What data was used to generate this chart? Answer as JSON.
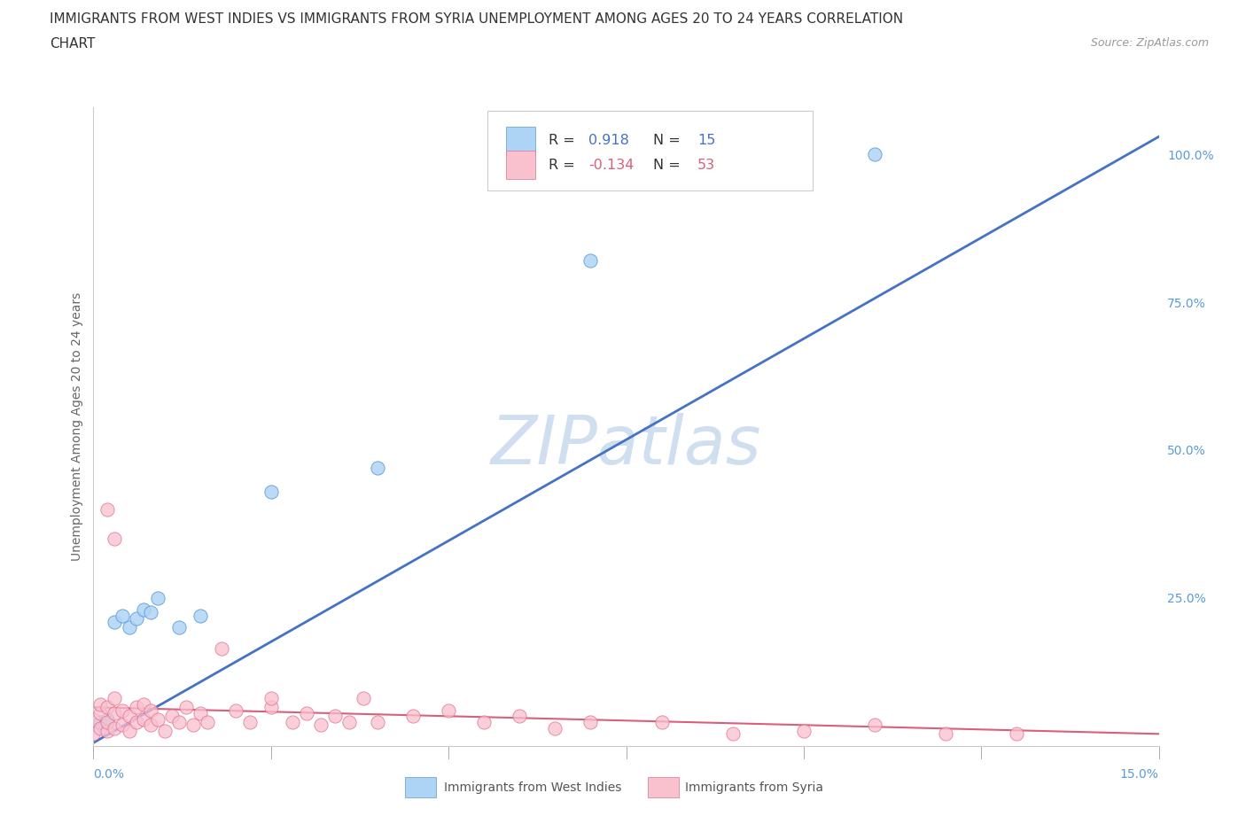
{
  "title_line1": "IMMIGRANTS FROM WEST INDIES VS IMMIGRANTS FROM SYRIA UNEMPLOYMENT AMONG AGES 20 TO 24 YEARS CORRELATION",
  "title_line2": "CHART",
  "source": "Source: ZipAtlas.com",
  "xlabel_bottom_left": "0.0%",
  "xlabel_bottom_right": "15.0%",
  "ylabel": "Unemployment Among Ages 20 to 24 years",
  "right_yticks": [
    "100.0%",
    "75.0%",
    "50.0%",
    "25.0%"
  ],
  "right_ytick_vals": [
    1.0,
    0.75,
    0.5,
    0.25
  ],
  "xlim": [
    0.0,
    0.15
  ],
  "ylim": [
    0.0,
    1.08
  ],
  "blue_R": 0.918,
  "blue_N": 15,
  "pink_R": -0.134,
  "pink_N": 53,
  "blue_color": "#aed4f5",
  "blue_edge_color": "#5b9bd5",
  "blue_line_color": "#4472c4",
  "pink_color": "#f9c0ce",
  "pink_edge_color": "#e07090",
  "pink_line_color": "#d95f7a",
  "right_axis_color": "#5b9bd5",
  "watermark": "ZIPatlas",
  "watermark_color": "#d0dff0",
  "legend_label_blue": "Immigrants from West Indies",
  "legend_label_pink": "Immigrants from Syria",
  "blue_scatter_x": [
    0.001,
    0.002,
    0.003,
    0.004,
    0.005,
    0.006,
    0.007,
    0.008,
    0.009,
    0.012,
    0.015,
    0.025,
    0.04,
    0.07,
    0.11
  ],
  "blue_scatter_y": [
    0.04,
    0.045,
    0.21,
    0.22,
    0.2,
    0.215,
    0.23,
    0.225,
    0.25,
    0.2,
    0.22,
    0.43,
    0.47,
    0.82,
    1.0
  ],
  "blue_line_x0": 0.0,
  "blue_line_y0": 0.005,
  "blue_line_x1": 0.15,
  "blue_line_y1": 1.03,
  "pink_line_x0": 0.0,
  "pink_line_y0": 0.065,
  "pink_line_x1": 0.15,
  "pink_line_y1": 0.02,
  "pink_scatter_x": [
    0.0,
    0.0,
    0.001,
    0.001,
    0.001,
    0.002,
    0.002,
    0.002,
    0.003,
    0.003,
    0.003,
    0.004,
    0.004,
    0.005,
    0.005,
    0.006,
    0.006,
    0.007,
    0.007,
    0.008,
    0.008,
    0.009,
    0.01,
    0.011,
    0.012,
    0.013,
    0.014,
    0.015,
    0.016,
    0.018,
    0.02,
    0.022,
    0.025,
    0.025,
    0.028,
    0.03,
    0.032,
    0.034,
    0.036,
    0.038,
    0.04,
    0.045,
    0.05,
    0.055,
    0.06,
    0.065,
    0.07,
    0.08,
    0.09,
    0.1,
    0.11,
    0.12,
    0.13
  ],
  "pink_scatter_y": [
    0.02,
    0.045,
    0.03,
    0.055,
    0.07,
    0.025,
    0.04,
    0.065,
    0.03,
    0.055,
    0.08,
    0.035,
    0.06,
    0.025,
    0.05,
    0.04,
    0.065,
    0.045,
    0.07,
    0.035,
    0.06,
    0.045,
    0.025,
    0.05,
    0.04,
    0.065,
    0.035,
    0.055,
    0.04,
    0.165,
    0.06,
    0.04,
    0.065,
    0.08,
    0.04,
    0.055,
    0.035,
    0.05,
    0.04,
    0.08,
    0.04,
    0.05,
    0.06,
    0.04,
    0.05,
    0.03,
    0.04,
    0.04,
    0.02,
    0.025,
    0.035,
    0.02,
    0.02
  ],
  "background_color": "#ffffff",
  "grid_color": "#d8d8d8"
}
